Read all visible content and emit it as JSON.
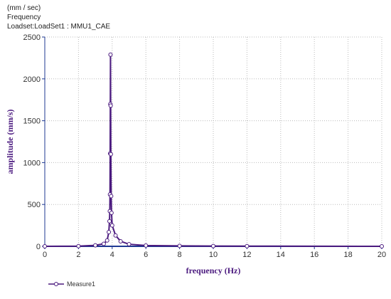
{
  "header": [
    "(mm / sec)",
    "Frequency",
    "Loadset:LoadSet1 :  MMU1_CAE"
  ],
  "chart_data": {
    "type": "line",
    "x_label": "frequency (Hz)",
    "y_label": "amplitude (mm/s)",
    "x": [
      0,
      2,
      3,
      3.5,
      3.7,
      3.8,
      3.84,
      3.86,
      3.87,
      3.88,
      3.89,
      3.9,
      3.91,
      3.92,
      3.94,
      3.96,
      4.0,
      4.2,
      4.5,
      5,
      6,
      8,
      10,
      12,
      20
    ],
    "series": [
      {
        "name": "Measure1",
        "color": "#4b1a7f",
        "values": [
          0,
          2,
          12,
          30,
          70,
          170,
          300,
          420,
          620,
          1110,
          1700,
          2290,
          1680,
          1100,
          600,
          400,
          250,
          130,
          60,
          25,
          10,
          5,
          3,
          2,
          0
        ]
      }
    ],
    "xlim": [
      0,
      20
    ],
    "xticks": [
      0,
      2,
      4,
      6,
      8,
      10,
      12,
      14,
      16,
      18,
      20
    ],
    "ylim": [
      0,
      2500
    ],
    "yticks": [
      0,
      500,
      1000,
      1500,
      2000,
      2500
    ],
    "grid": true,
    "legend": "bottom-left"
  }
}
